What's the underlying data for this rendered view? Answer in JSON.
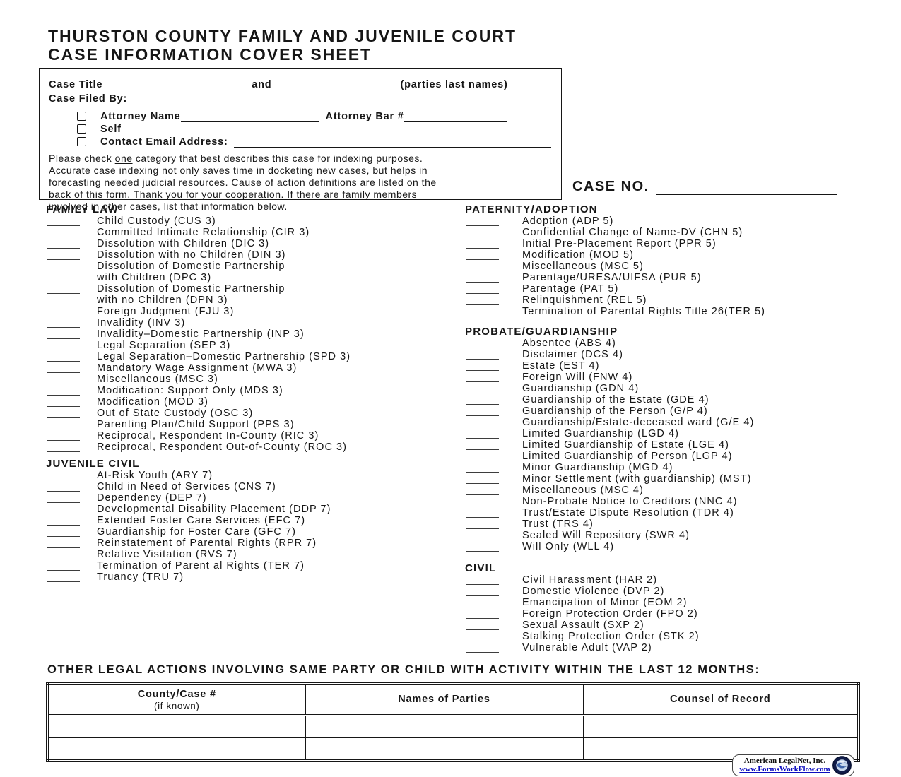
{
  "page": {
    "title_line1": "THURSTON COUNTY FAMILY AND JUVENILE COURT",
    "title_line2": "CASE INFORMATION COVER SHEET",
    "case_no_label": "CASE NO."
  },
  "header_box": {
    "case_title_label": "Case Title",
    "and_label": "and",
    "parties_label": "(parties last names)",
    "filed_by_label": "Case Filed By:",
    "attorney_label": "Attorney Name",
    "attorney_bar_label": "Attorney Bar #",
    "self_label": "Self",
    "email_label": "Contact Email Address:",
    "note_line1_pre": "Please check ",
    "note_line1_underlined": "one",
    "note_line1_post": " category that best describes this case for indexing purposes.",
    "note_lines": [
      "Accurate case indexing not only saves time in docketing new cases, but helps in",
      "forecasting needed judicial resources.  Cause of action definitions are listed on the",
      "back of this form.  Thank you for your cooperation.  If there are family members",
      "involved in other cases, list that information below."
    ]
  },
  "left_sections": [
    {
      "title": "FAMILY LAW",
      "items": [
        {
          "blank": true,
          "text": "Child Custody (CUS 3)"
        },
        {
          "blank": true,
          "text": "Committed Intimate Relationship (CIR 3)"
        },
        {
          "blank": true,
          "text": "Dissolution with Children (DIC 3)"
        },
        {
          "blank": true,
          "text": "Dissolution with no Children (DIN 3)"
        },
        {
          "blank": true,
          "text": "Dissolution of Domestic Partnership"
        },
        {
          "blank": false,
          "text": "with Children (DPC 3)"
        },
        {
          "blank": true,
          "text": "Dissolution of Domestic Partnership"
        },
        {
          "blank": false,
          "text": "with no Children (DPN 3)"
        },
        {
          "blank": true,
          "text": "Foreign Judgment (FJU 3)"
        },
        {
          "blank": true,
          "text": "Invalidity (INV 3)"
        },
        {
          "blank": true,
          "text": "Invalidity–Domestic Partnership (INP 3)"
        },
        {
          "blank": true,
          "text": "Legal Separation (SEP 3)"
        },
        {
          "blank": true,
          "text": "Legal Separation–Domestic Partnership (SPD 3)"
        },
        {
          "blank": true,
          "text": "Mandatory Wage Assignment (MWA 3)"
        },
        {
          "blank": true,
          "text": "Miscellaneous (MSC 3)"
        },
        {
          "blank": true,
          "text": "Modification: Support Only (MDS 3)"
        },
        {
          "blank": true,
          "text": "Modification (MOD 3)"
        },
        {
          "blank": true,
          "text": "Out of State Custody (OSC 3)"
        },
        {
          "blank": true,
          "text": "Parenting Plan/Child Support (PPS 3)"
        },
        {
          "blank": true,
          "text": "Reciprocal, Respondent In-County (RIC 3)"
        },
        {
          "blank": true,
          "text": "Reciprocal, Respondent Out-of-County (ROC 3)"
        }
      ]
    },
    {
      "title": "JUVENILE CIVIL",
      "items": [
        {
          "blank": true,
          "text": "At-Risk Youth (ARY 7)"
        },
        {
          "blank": true,
          "text": "Child in Need of Services (CNS 7)"
        },
        {
          "blank": true,
          "text": "Dependency (DEP 7)"
        },
        {
          "blank": true,
          "text": "Developmental Disability Placement (DDP 7)"
        },
        {
          "blank": true,
          "text": "Extended Foster Care Services (EFC 7)"
        },
        {
          "blank": true,
          "text": "Guardianship for Foster Care (GFC 7)"
        },
        {
          "blank": true,
          "text": "Reinstatement of Parental Rights (RPR 7)"
        },
        {
          "blank": true,
          "text": "Relative Visitation (RVS 7)"
        },
        {
          "blank": true,
          "text": "Termination of Parent al Rights (TER 7)"
        },
        {
          "blank": true,
          "text": "Truancy (TRU 7)"
        }
      ]
    }
  ],
  "right_sections": [
    {
      "title": "PATERNITY/ADOPTION",
      "items": [
        {
          "blank": true,
          "text": "Adoption (ADP 5)"
        },
        {
          "blank": true,
          "text": "Confidential Change of Name-DV (CHN 5)"
        },
        {
          "blank": true,
          "text": "Initial Pre-Placement Report (PPR 5)"
        },
        {
          "blank": true,
          "text": "Modification (MOD 5)"
        },
        {
          "blank": true,
          "text": "Miscellaneous (MSC 5)"
        },
        {
          "blank": true,
          "text": "Parentage/URESA/UIFSA (PUR 5)"
        },
        {
          "blank": true,
          "text": "Parentage (PAT 5)"
        },
        {
          "blank": true,
          "text": "Relinquishment (REL 5)"
        },
        {
          "blank": true,
          "text": "Termination of Parental Rights Title 26(TER 5)"
        }
      ]
    },
    {
      "title": "PROBATE/GUARDIANSHIP",
      "items": [
        {
          "blank": true,
          "text": "Absentee (ABS 4)"
        },
        {
          "blank": true,
          "text": "Disclaimer (DCS 4)"
        },
        {
          "blank": true,
          "text": "Estate (EST 4)"
        },
        {
          "blank": true,
          "text": "Foreign Will (FNW 4)"
        },
        {
          "blank": true,
          "text": "Guardianship (GDN 4)"
        },
        {
          "blank": true,
          "text": "Guardianship of the Estate (GDE 4)"
        },
        {
          "blank": true,
          "text": "Guardianship of the Person (G/P 4)"
        },
        {
          "blank": true,
          "text": "Guardianship/Estate-deceased ward  (G/E 4)"
        },
        {
          "blank": true,
          "text": "Limited Guardianship (LGD 4)"
        },
        {
          "blank": true,
          "text": "Limited Guardianship of Estate (LGE 4)"
        },
        {
          "blank": true,
          "text": "Limited Guardianship of Person (LGP 4)"
        },
        {
          "blank": true,
          "text": "Minor Guardianship (MGD 4)"
        },
        {
          "blank": true,
          "text": "Minor Settlement (with guardianship) (MST)"
        },
        {
          "blank": true,
          "text": "Miscellaneous (MSC 4)"
        },
        {
          "blank": true,
          "text": "Non-Probate Notice to Creditors (NNC 4)"
        },
        {
          "blank": true,
          "text": "Trust/Estate Dispute Resolution (TDR 4)"
        },
        {
          "blank": true,
          "text": "Trust (TRS 4)"
        },
        {
          "blank": true,
          "text": "Sealed Will Repository (SWR 4)"
        },
        {
          "blank": true,
          "text": "Will Only (WLL 4)"
        }
      ]
    },
    {
      "title": "CIVIL",
      "items": [
        {
          "blank": true,
          "text": "Civil Harassment (HAR 2)"
        },
        {
          "blank": true,
          "text": "Domestic Violence (DVP 2)"
        },
        {
          "blank": true,
          "text": "Emancipation of Minor (EOM 2)"
        },
        {
          "blank": true,
          "text": "Foreign Protection Order (FPO 2)"
        },
        {
          "blank": true,
          "text": "Sexual Assault (SXP 2)"
        },
        {
          "blank": true,
          "text": "Stalking Protection Order (STK 2)"
        },
        {
          "blank": true,
          "text": "Vulnerable Adult (VAP 2)"
        }
      ]
    }
  ],
  "other_actions": {
    "title": "OTHER LEGAL ACTIONS INVOLVING SAME PARTY OR CHILD WITH ACTIVITY WITHIN THE LAST 12 MONTHS:",
    "columns": [
      {
        "line1": "County/Case #",
        "line2": "(if known)"
      },
      {
        "line1": "Names of Parties",
        "line2": ""
      },
      {
        "line1": "Counsel of Record",
        "line2": ""
      }
    ],
    "empty_rows": 2
  },
  "footer": {
    "company": "American LegalNet, Inc.",
    "url": "www.FormsWorkFlow.com",
    "link_color": "#0c0cbf",
    "logo": "globe-logo"
  }
}
